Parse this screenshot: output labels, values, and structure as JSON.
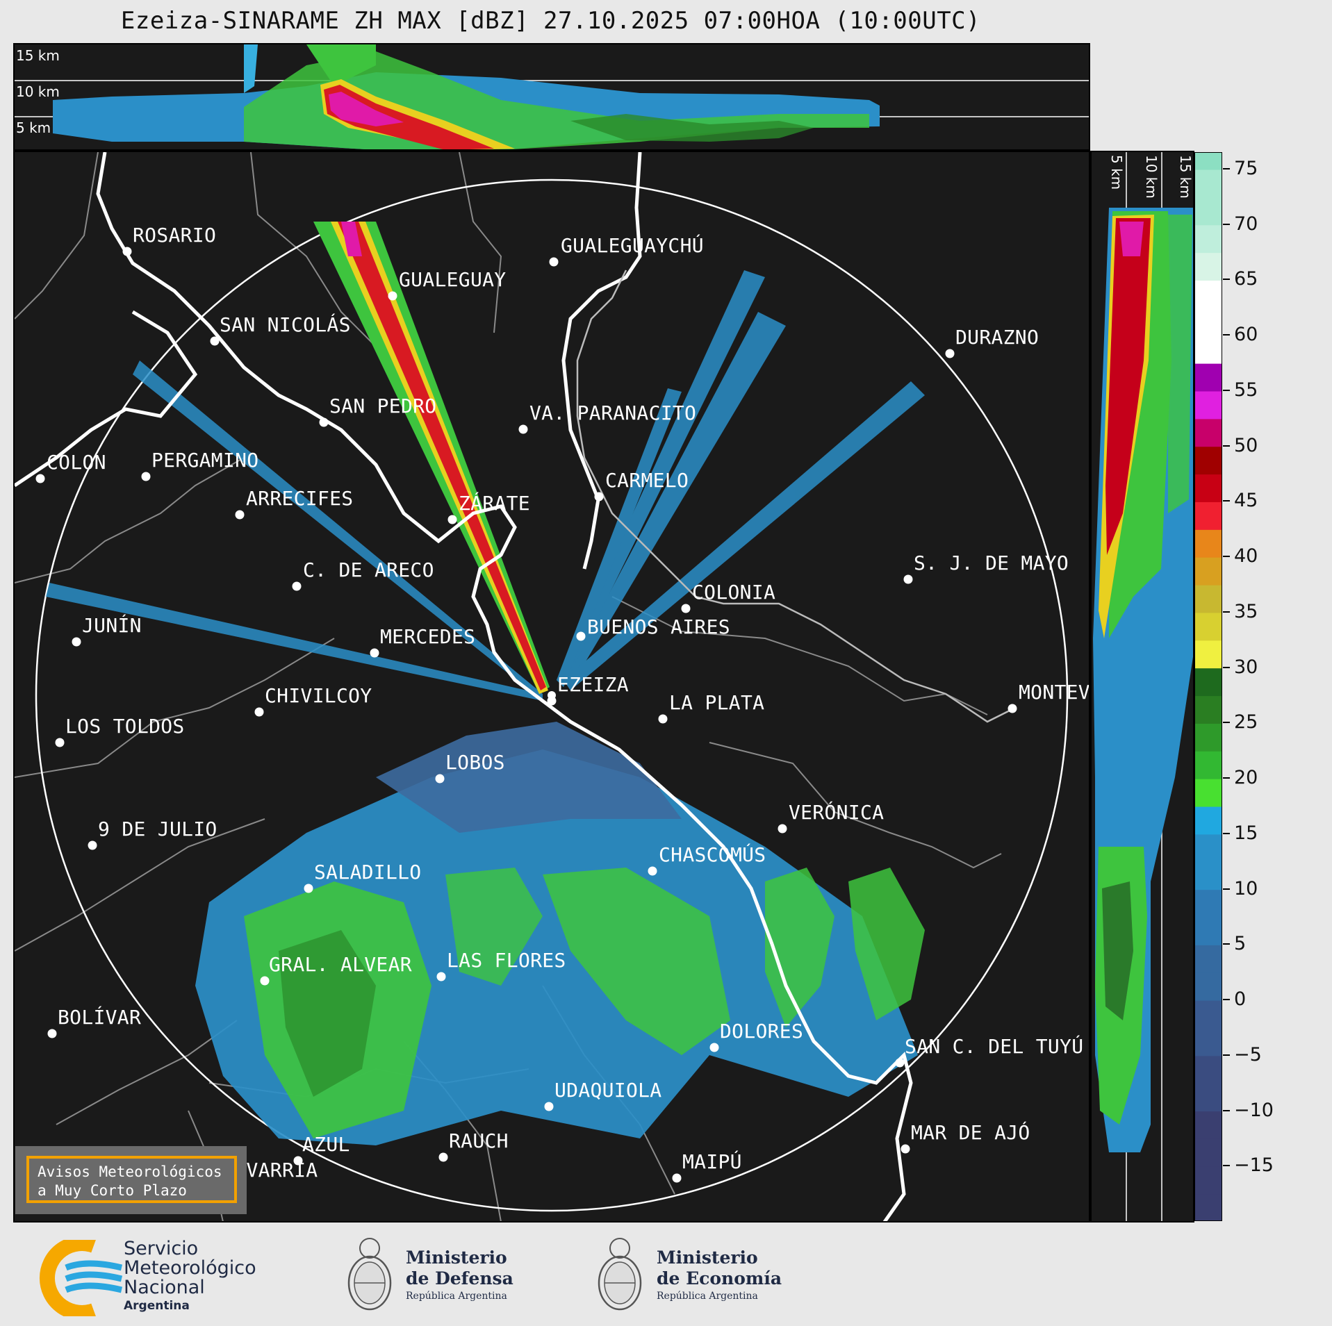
{
  "title": "Ezeiza-SINARAME ZH MAX [dBZ] 27.10.2025 07:00HOA (10:00UTC)",
  "top_panel": {
    "altitude_labels": [
      "15 km",
      "10 km",
      "5 km"
    ]
  },
  "side_panel": {
    "altitude_labels": [
      "5 km",
      "10 km",
      "15 km"
    ]
  },
  "colorbar": {
    "tick_values": [
      75,
      70,
      65,
      60,
      55,
      50,
      45,
      40,
      35,
      30,
      25,
      20,
      15,
      10,
      5,
      0,
      -5,
      -10,
      -15
    ],
    "tick_labels": [
      "75",
      "70",
      "65",
      "60",
      "55",
      "50",
      "45",
      "40",
      "35",
      "30",
      "25",
      "20",
      "15",
      "10",
      "5",
      "0",
      "−5",
      "−10",
      "−15"
    ],
    "min": -20,
    "max": 76.5
  },
  "cities": [
    {
      "name": "ROSARIO"
    },
    {
      "name": "GUALEGUAYCHÚ"
    },
    {
      "name": "GUALEGUAY"
    },
    {
      "name": "SAN NICOLÁS"
    },
    {
      "name": "DURAZNO"
    },
    {
      "name": "SAN PEDRO"
    },
    {
      "name": "VA. PARANACITO"
    },
    {
      "name": "COLON"
    },
    {
      "name": "PERGAMINO"
    },
    {
      "name": "CARMELO"
    },
    {
      "name": "ARRECIFES"
    },
    {
      "name": "ZÁRATE"
    },
    {
      "name": "S. J. DE MAYO"
    },
    {
      "name": "C. DE ARECO"
    },
    {
      "name": "COLONIA"
    },
    {
      "name": "BUENOS AIRES"
    },
    {
      "name": "JUNÍN"
    },
    {
      "name": "MERCEDES"
    },
    {
      "name": "EZEIZA"
    },
    {
      "name": "MONTEV"
    },
    {
      "name": "CHIVILCOY"
    },
    {
      "name": "LA PLATA"
    },
    {
      "name": "LOS TOLDOS"
    },
    {
      "name": "LOBOS"
    },
    {
      "name": "VERÓNICA"
    },
    {
      "name": "9 DE JULIO"
    },
    {
      "name": "CHASCOMÚS"
    },
    {
      "name": "SALADILLO"
    },
    {
      "name": "GRAL. ALVEAR"
    },
    {
      "name": "LAS FLORES"
    },
    {
      "name": "BOLÍVAR"
    },
    {
      "name": "DOLORES"
    },
    {
      "name": "SAN C. DEL TUYÚ"
    },
    {
      "name": "UDAQUIOLA"
    },
    {
      "name": "MAR DE AJÓ"
    },
    {
      "name": "AZUL"
    },
    {
      "name": "RAUCH"
    },
    {
      "name": "OLAVARRÍA"
    },
    {
      "name": "MAIPÚ"
    }
  ],
  "avisos": {
    "line1": "Avisos Meteorológicos",
    "line2": "a Muy Corto Plazo"
  },
  "logos": {
    "smn": {
      "line1": "Servicio",
      "line2": "Meteorológico",
      "line3": "Nacional",
      "line4": "Argentina"
    },
    "defensa": {
      "line1": "Ministerio",
      "line2": "de Defensa",
      "line3": "República Argentina"
    },
    "economia": {
      "line1": "Ministerio",
      "line2": "de Economía",
      "line3": "República Argentina"
    }
  }
}
